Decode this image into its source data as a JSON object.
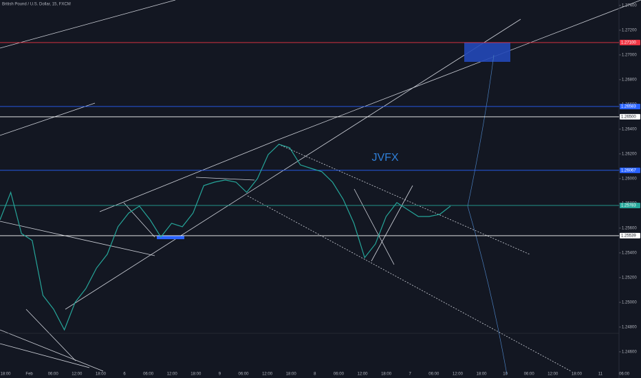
{
  "chart_data": {
    "type": "line",
    "title": "British Pound / U.S. Dollar, 15, FXCM",
    "watermark": "JVFX",
    "x_axis_labels": [
      "18:00",
      "Feb",
      "06:00",
      "12:00",
      "18:00",
      "6",
      "06:00",
      "12:00",
      "18:00",
      "9",
      "06:00",
      "12:00",
      "18:00",
      "8",
      "06:00",
      "12:00",
      "18:00",
      "7",
      "06:00",
      "12:00",
      "18:00",
      "10",
      "06:00",
      "12:00",
      "18:00",
      "11",
      "06:00"
    ],
    "series": [
      {
        "name": "GBPUSD",
        "color": "#26a69a",
        "values": [
          1.25667,
          1.25889,
          1.25556,
          1.255,
          1.25056,
          1.24944,
          1.24778,
          1.25,
          1.25111,
          1.25278,
          1.25389,
          1.25611,
          1.25722,
          1.25778,
          1.25667,
          1.25528,
          1.25639,
          1.25611,
          1.25722,
          1.25944,
          1.25972,
          1.25989,
          1.25972,
          1.25889,
          1.26,
          1.26194,
          1.26278,
          1.2625,
          1.26111,
          1.26083,
          1.26056,
          1.25972,
          1.25833,
          1.25639,
          1.25361,
          1.25472,
          1.25694,
          1.25806,
          1.2575,
          1.25694,
          1.25694,
          1.25711,
          1.25778
        ]
      }
    ],
    "ylim": [
      1.24444,
      1.27444
    ],
    "yticks": [
      {
        "value": 1.274,
        "label": "1.27400"
      },
      {
        "value": 1.272,
        "label": "1.27200"
      },
      {
        "value": 1.27,
        "label": "1.27000"
      },
      {
        "value": 1.268,
        "label": "1.26800"
      },
      {
        "value": 1.266,
        "label": "1.26600"
      },
      {
        "value": 1.264,
        "label": "1.26400"
      },
      {
        "value": 1.262,
        "label": "1.26200"
      },
      {
        "value": 1.26,
        "label": "1.26000"
      },
      {
        "value": 1.258,
        "label": "1.25800"
      },
      {
        "value": 1.256,
        "label": "1.25600"
      },
      {
        "value": 1.254,
        "label": "1.25400"
      },
      {
        "value": 1.252,
        "label": "1.25200"
      },
      {
        "value": 1.25,
        "label": "1.25000"
      },
      {
        "value": 1.248,
        "label": "1.24800"
      },
      {
        "value": 1.246,
        "label": "1.24600"
      }
    ],
    "levels": [
      {
        "value": 1.271,
        "label": "1.27100",
        "color": "#f23645"
      },
      {
        "value": 1.26583,
        "label": "1.26583",
        "color": "#2962ff"
      },
      {
        "value": 1.265,
        "label": "1.26500",
        "color": "#ffffff"
      },
      {
        "value": 1.26067,
        "label": "1.26067",
        "color": "#2962ff"
      },
      {
        "value": 1.25783,
        "label": "1.25783",
        "color": "#26a69a"
      },
      {
        "value": 1.25539,
        "label": "1.25539",
        "color": "#ffffff"
      }
    ]
  }
}
